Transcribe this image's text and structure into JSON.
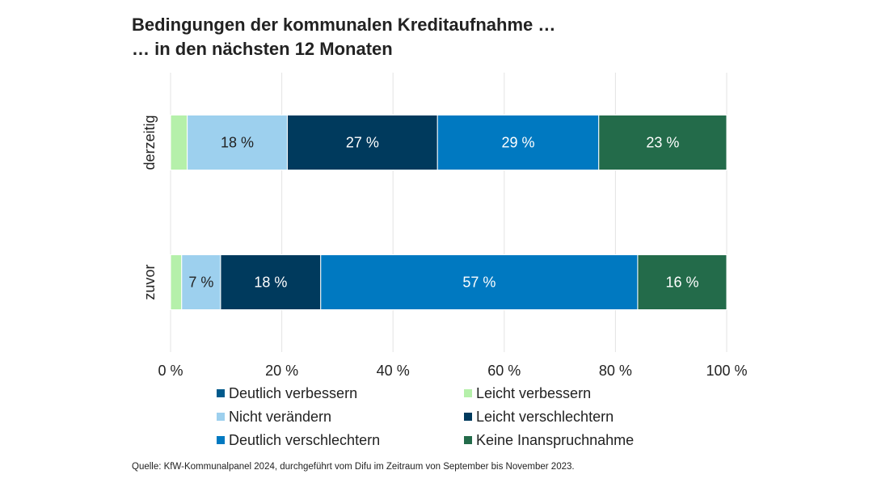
{
  "chart_data": {
    "type": "stacked_barh",
    "title": [
      "Bedingungen der kommunalen Kreditaufnahme …",
      "… in den nächsten 12 Monaten"
    ],
    "categories": [
      "derzeitig",
      "zuvor"
    ],
    "series": [
      {
        "name": "Deutlich verbessern",
        "color": "#005a8c",
        "values": [
          0,
          0
        ],
        "value_labels": [
          null,
          null
        ]
      },
      {
        "name": "Leicht verbessern",
        "color": "#b5f0aa",
        "values": [
          3,
          2
        ],
        "value_labels": [
          null,
          null
        ]
      },
      {
        "name": "Nicht verändern",
        "color": "#9dd0ee",
        "values": [
          18,
          7
        ],
        "value_labels": [
          "18 %",
          "7 %"
        ]
      },
      {
        "name": "Leicht verschlechtern",
        "color": "#003a5d",
        "values": [
          27,
          18
        ],
        "value_labels": [
          "27 %",
          "18 %"
        ]
      },
      {
        "name": "Deutlich verschlechtern",
        "color": "#0079c1",
        "values": [
          29,
          57
        ],
        "value_labels": [
          "29 %",
          "57 %"
        ]
      },
      {
        "name": "Keine Inanspruchnahme",
        "color": "#236b4a",
        "values": [
          23,
          16
        ],
        "value_labels": [
          "23 %",
          "16 %"
        ]
      }
    ],
    "xlim": [
      0,
      100
    ],
    "xticks": [
      {
        "value": 0,
        "label": "0 %"
      },
      {
        "value": 20,
        "label": "20 %"
      },
      {
        "value": 40,
        "label": "40 %"
      },
      {
        "value": 60,
        "label": "60 %"
      },
      {
        "value": 80,
        "label": "80 %"
      },
      {
        "value": 100,
        "label": "100 %"
      }
    ],
    "grid": true,
    "source": "Quelle: KfW-Kommunalpanel 2024, durchgeführt vom Difu im Zeitraum von September bis November 2023."
  }
}
